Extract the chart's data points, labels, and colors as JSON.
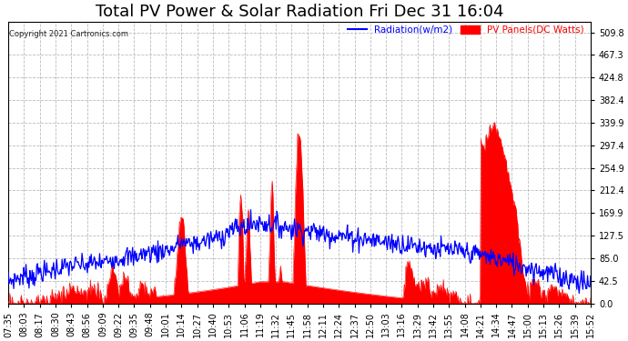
{
  "title": "Total PV Power & Solar Radiation Fri Dec 31 16:04",
  "copyright": "Copyright 2021 Cartronics.com",
  "legend_radiation": "Radiation(w/m2)",
  "legend_pv": "PV Panels(DC Watts)",
  "yticks": [
    0.0,
    42.5,
    85.0,
    127.5,
    169.9,
    212.4,
    254.9,
    297.4,
    339.9,
    382.4,
    424.8,
    467.3,
    509.8
  ],
  "ylim": [
    0,
    530
  ],
  "background_color": "#ffffff",
  "grid_color": "#bbbbbb",
  "pv_color": "#ff0000",
  "radiation_color": "#0000ff",
  "title_fontsize": 13,
  "tick_fontsize": 7,
  "x_labels": [
    "07:35",
    "08:03",
    "08:17",
    "08:30",
    "08:43",
    "08:56",
    "09:09",
    "09:22",
    "09:35",
    "09:48",
    "10:01",
    "10:14",
    "10:27",
    "10:40",
    "10:53",
    "11:06",
    "11:19",
    "11:32",
    "11:45",
    "11:58",
    "12:11",
    "12:24",
    "12:37",
    "12:50",
    "13:03",
    "13:16",
    "13:29",
    "13:42",
    "13:55",
    "14:08",
    "14:21",
    "14:34",
    "14:47",
    "15:00",
    "15:13",
    "15:26",
    "15:39",
    "15:52"
  ]
}
